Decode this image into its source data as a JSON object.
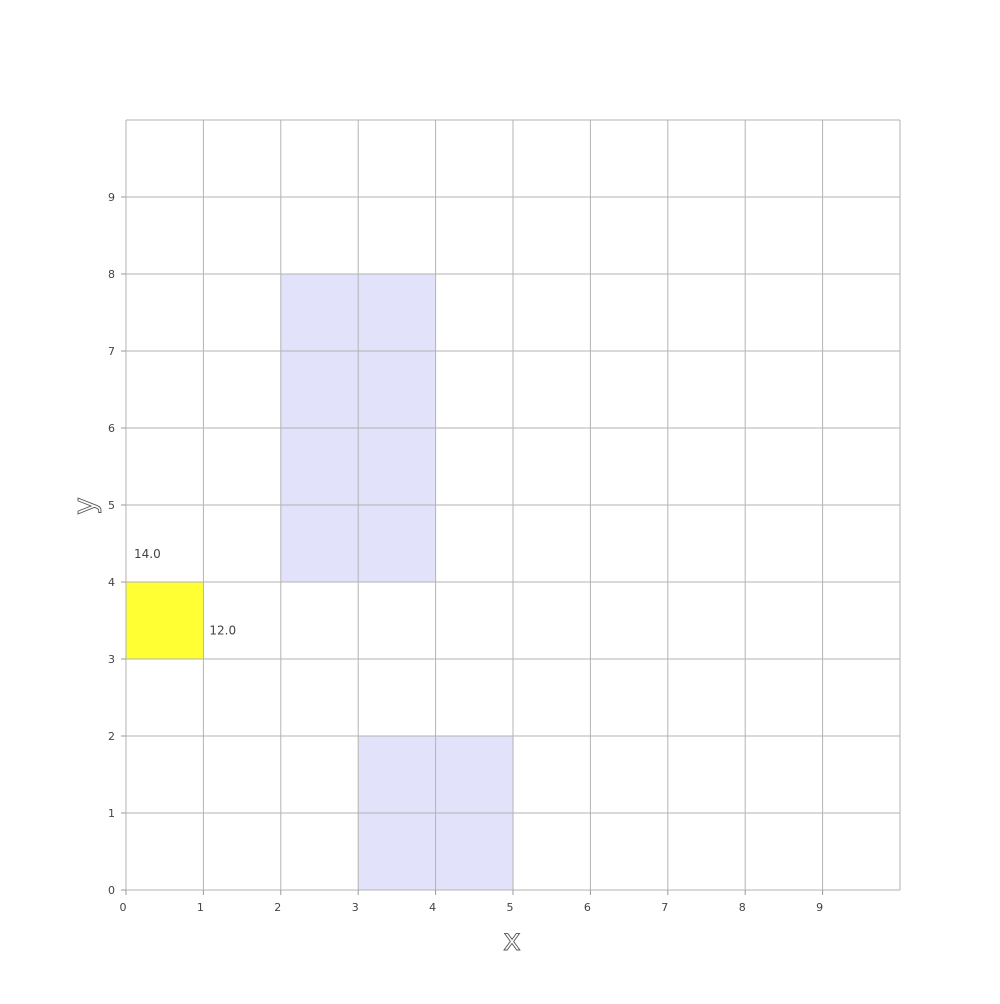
{
  "chart_data": {
    "type": "heatmap",
    "title": "",
    "xlabel": "x",
    "ylabel": "y",
    "xlim": [
      0,
      10
    ],
    "ylim": [
      0,
      10
    ],
    "x_ticks": [
      "0",
      "1",
      "2",
      "3",
      "4",
      "5",
      "6",
      "7",
      "8",
      "9"
    ],
    "y_ticks": [
      "0",
      "1",
      "2",
      "3",
      "4",
      "5",
      "6",
      "7",
      "8",
      "9"
    ],
    "grid": true,
    "shaded_regions": [
      {
        "x0": 2,
        "x1": 4,
        "y0": 4,
        "y1": 8,
        "color": "#e2e2fa"
      },
      {
        "x0": 3,
        "x1": 5,
        "y0": 0,
        "y1": 2,
        "color": "#e2e2fa"
      }
    ],
    "highlight_cell": {
      "x": 0,
      "y": 3,
      "color": "#ffff33",
      "top_value": "14.0",
      "right_value": "12.0"
    }
  }
}
